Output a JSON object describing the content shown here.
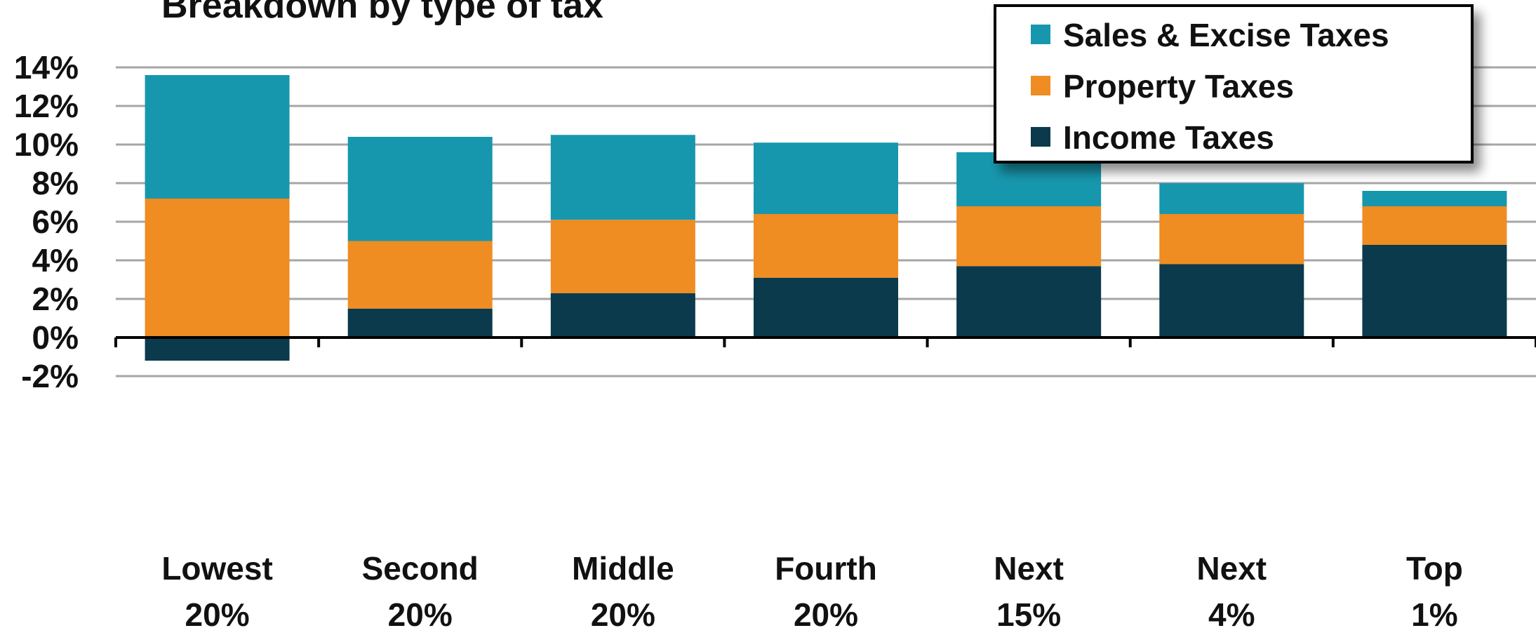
{
  "chart_data": {
    "type": "bar",
    "stacked": true,
    "title": "Breakdown by type of tax",
    "categories": [
      [
        "Lowest",
        "20%"
      ],
      [
        "Second",
        "20%"
      ],
      [
        "Middle",
        "20%"
      ],
      [
        "Fourth",
        "20%"
      ],
      [
        "Next",
        "15%"
      ],
      [
        "Next",
        "4%"
      ],
      [
        "Top",
        "1%"
      ]
    ],
    "series": [
      {
        "name": "Income Taxes",
        "color": "#0a3a4b",
        "values": [
          -1.2,
          1.5,
          2.3,
          3.1,
          3.7,
          3.8,
          4.8
        ]
      },
      {
        "name": "Property Taxes",
        "color": "#ef8c22",
        "values": [
          7.2,
          3.5,
          3.8,
          3.3,
          3.1,
          2.6,
          2.0
        ]
      },
      {
        "name": "Sales & Excise Taxes",
        "color": "#1797ad",
        "values": [
          6.4,
          5.4,
          4.4,
          3.7,
          2.8,
          1.6,
          0.8
        ]
      }
    ],
    "legend_order": [
      "Sales & Excise Taxes",
      "Property Taxes",
      "Income Taxes"
    ],
    "yticks": [
      "14%",
      "12%",
      "10%",
      "8%",
      "6%",
      "4%",
      "2%",
      "0%",
      "-2%"
    ],
    "ytick_values": [
      14,
      12,
      10,
      8,
      6,
      4,
      2,
      0,
      -2
    ],
    "ylim": [
      -2,
      14
    ],
    "grid": true,
    "legend_position": "top-right"
  }
}
